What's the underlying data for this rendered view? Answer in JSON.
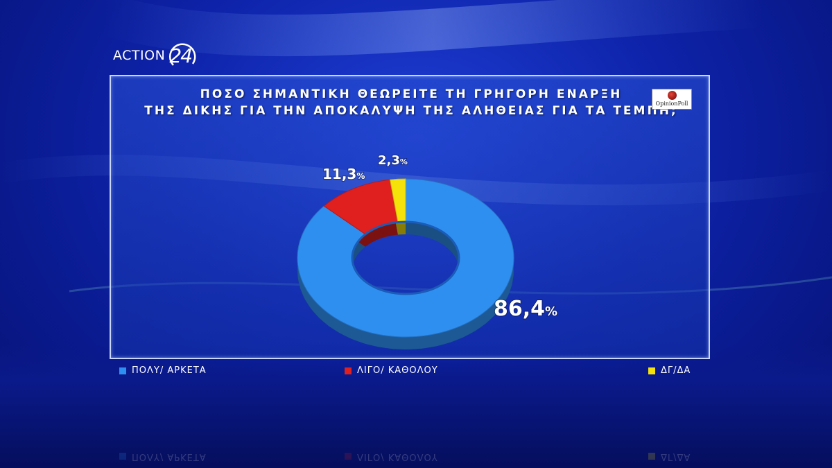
{
  "logo": {
    "text": "ACTION",
    "number": "24"
  },
  "source_logo": {
    "text": "OpinionPoll"
  },
  "chart_data": {
    "type": "pie",
    "title": "ΠΟΣΟ ΣΗΜΑΝΤΙΚΗ ΘΕΩΡΕΙΤΕ ΤΗ ΓΡΗΓΟΡΗ ΕΝΑΡΞΗ ΤΗΣ ΔΙΚΗΣ ΓΙΑ ΤΗΝ ΑΠΟΚΑΛΥΨΗ ΤΗΣ ΑΛΗΘΕΙΑΣ ΓΙΑ ΤΑ ΤΕΜΠΗ;",
    "title_lines": [
      "ΠΟΣΟ ΣΗΜΑΝΤΙΚΗ ΘΕΩΡΕΙΤΕ ΤΗ ΓΡΗΓΟΡΗ ΕΝΑΡΞΗ",
      "ΤΗΣ ΔΙΚΗΣ ΓΙΑ ΤΗΝ ΑΠΟΚΑΛΥΨΗ ΤΗΣ ΑΛΗΘΕΙΑΣ ΓΙΑ ΤΑ ΤΕΜΠΗ;"
    ],
    "donut": true,
    "slices": [
      {
        "label": "ΠΟΛΥ/ ΑΡΚΕΤΑ",
        "value": 86.4,
        "display": "86,4",
        "color": "#2f8ff0"
      },
      {
        "label": "ΛΙΓΟ/ ΚΑΘΟΛΟΥ",
        "value": 11.3,
        "display": "11,3",
        "color": "#e01f1f"
      },
      {
        "label": "ΔΓ/ΔΑ",
        "value": 2.3,
        "display": "2,3",
        "color": "#f5e20a"
      }
    ],
    "unit": "%",
    "legend_position": "bottom"
  }
}
